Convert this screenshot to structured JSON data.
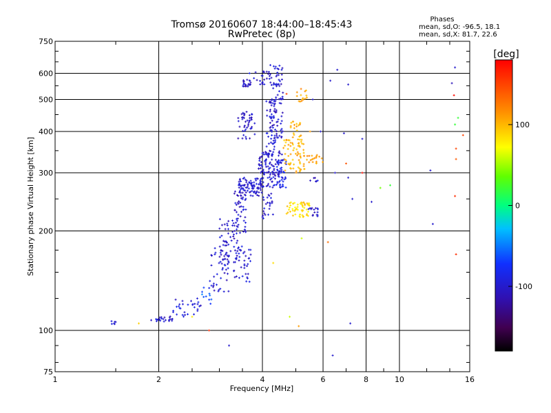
{
  "chart_data": {
    "type": "scatter",
    "title": "Tromsø 20160607 18:44:00–18:45:43",
    "subtitle": "RwPretec (8p)",
    "stats": {
      "heading": "Phases",
      "line_o": "mean, sd,O: -96.5, 18.1",
      "line_x": "mean, sd,X: 81.7, 22.6"
    },
    "xlabel": "Frequency [MHz]",
    "ylabel": "Stationary phase Virtual Height [km]",
    "xscale": "log",
    "yscale": "log",
    "xlim": [
      1,
      16
    ],
    "ylim": [
      75,
      750
    ],
    "xticks": [
      1,
      2,
      4,
      6,
      8,
      10,
      16
    ],
    "xtick_labels": [
      "1",
      "2",
      "4",
      "6",
      "8",
      "10",
      "16"
    ],
    "yticks": [
      75,
      100,
      200,
      300,
      400,
      500,
      600,
      750
    ],
    "ytick_labels": [
      "75",
      "100",
      "200",
      "300",
      "400",
      "500",
      "600",
      "750"
    ],
    "grid": true,
    "colorbar": {
      "label": "[deg]",
      "range": [
        -180,
        180
      ],
      "ticks": [
        100,
        0,
        -100
      ],
      "tick_labels": [
        "100",
        "0",
        "-100"
      ]
    },
    "clusters": [
      {
        "f": [
          1.45,
          1.5
        ],
        "h": [
          104,
          107
        ],
        "phase": -100,
        "n": 6
      },
      {
        "f": [
          1.9,
          2.2
        ],
        "h": [
          106,
          111
        ],
        "phase": -100,
        "n": 22
      },
      {
        "f": [
          2.2,
          2.7
        ],
        "h": [
          110,
          125
        ],
        "phase": -95,
        "n": 30
      },
      {
        "f": [
          2.6,
          2.9
        ],
        "h": [
          120,
          135
        ],
        "phase": -60,
        "n": 10
      },
      {
        "f": [
          2.8,
          3.2
        ],
        "h": [
          130,
          180
        ],
        "phase": -100,
        "n": 45
      },
      {
        "f": [
          3.0,
          3.4
        ],
        "h": [
          160,
          220
        ],
        "phase": -100,
        "n": 55
      },
      {
        "f": [
          3.3,
          3.7
        ],
        "h": [
          140,
          180
        ],
        "phase": -100,
        "n": 40
      },
      {
        "f": [
          3.3,
          3.6
        ],
        "h": [
          195,
          270
        ],
        "phase": -100,
        "n": 45
      },
      {
        "f": [
          3.4,
          4.0
        ],
        "h": [
          255,
          290
        ],
        "phase": -100,
        "n": 90
      },
      {
        "f": [
          3.9,
          4.6
        ],
        "h": [
          270,
          350
        ],
        "phase": -100,
        "n": 110
      },
      {
        "f": [
          3.4,
          3.8
        ],
        "h": [
          380,
          460
        ],
        "phase": -105,
        "n": 45
      },
      {
        "f": [
          3.5,
          3.7
        ],
        "h": [
          545,
          575
        ],
        "phase": -105,
        "n": 20
      },
      {
        "f": [
          3.6,
          4.2
        ],
        "h": [
          555,
          610
        ],
        "phase": -100,
        "n": 25
      },
      {
        "f": [
          4.2,
          4.6
        ],
        "h": [
          380,
          640
        ],
        "phase": -100,
        "n": 90
      },
      {
        "f": [
          4.0,
          4.3
        ],
        "h": [
          215,
          260
        ],
        "phase": -100,
        "n": 25
      },
      {
        "f": [
          4.1,
          4.4
        ],
        "h": [
          300,
          500
        ],
        "phase": -100,
        "n": 60
      },
      {
        "f": [
          4.4,
          4.7
        ],
        "h": [
          270,
          330
        ],
        "phase": -85,
        "n": 30
      },
      {
        "f": [
          4.6,
          5.3
        ],
        "h": [
          300,
          380
        ],
        "phase": 100,
        "n": 70
      },
      {
        "f": [
          4.8,
          5.2
        ],
        "h": [
          380,
          430
        ],
        "phase": 105,
        "n": 20
      },
      {
        "f": [
          5.0,
          5.4
        ],
        "h": [
          470,
          540
        ],
        "phase": 110,
        "n": 15
      },
      {
        "f": [
          4.7,
          5.5
        ],
        "h": [
          220,
          245
        ],
        "phase": 85,
        "n": 55
      },
      {
        "f": [
          5.4,
          5.8
        ],
        "h": [
          220,
          235
        ],
        "phase": -100,
        "n": 15
      },
      {
        "f": [
          5.3,
          6.0
        ],
        "h": [
          320,
          340
        ],
        "phase": 110,
        "n": 20
      },
      {
        "f": [
          5.5,
          6.0
        ],
        "h": [
          280,
          290
        ],
        "phase": -100,
        "n": 6
      }
    ],
    "scattered_points": [
      {
        "f": 6.6,
        "h": 615,
        "phase": -100
      },
      {
        "f": 6.3,
        "h": 570,
        "phase": -100
      },
      {
        "f": 7.1,
        "h": 555,
        "phase": -100
      },
      {
        "f": 6.5,
        "h": 300,
        "phase": -100
      },
      {
        "f": 7.1,
        "h": 290,
        "phase": -100
      },
      {
        "f": 6.9,
        "h": 395,
        "phase": -100
      },
      {
        "f": 7.8,
        "h": 380,
        "phase": -100
      },
      {
        "f": 7.0,
        "h": 320,
        "phase": 140
      },
      {
        "f": 7.3,
        "h": 250,
        "phase": -100
      },
      {
        "f": 7.8,
        "h": 300,
        "phase": 175
      },
      {
        "f": 8.3,
        "h": 245,
        "phase": -100
      },
      {
        "f": 8.8,
        "h": 270,
        "phase": 40
      },
      {
        "f": 9.4,
        "h": 275,
        "phase": 20
      },
      {
        "f": 6.2,
        "h": 185,
        "phase": 130
      },
      {
        "f": 7.2,
        "h": 105,
        "phase": -100
      },
      {
        "f": 6.4,
        "h": 84,
        "phase": -100
      },
      {
        "f": 5.1,
        "h": 103,
        "phase": 110
      },
      {
        "f": 4.8,
        "h": 110,
        "phase": 60
      },
      {
        "f": 4.3,
        "h": 160,
        "phase": 85
      },
      {
        "f": 3.2,
        "h": 90,
        "phase": -100
      },
      {
        "f": 2.8,
        "h": 100,
        "phase": 160
      },
      {
        "f": 1.75,
        "h": 105,
        "phase": 90
      },
      {
        "f": 2.5,
        "h": 110,
        "phase": 80
      },
      {
        "f": 12.3,
        "h": 305,
        "phase": -100
      },
      {
        "f": 12.5,
        "h": 210,
        "phase": -100
      },
      {
        "f": 14.5,
        "h": 420,
        "phase": 20
      },
      {
        "f": 14.6,
        "h": 330,
        "phase": 140
      },
      {
        "f": 14.5,
        "h": 255,
        "phase": 160
      },
      {
        "f": 14.6,
        "h": 170,
        "phase": 160
      },
      {
        "f": 14.2,
        "h": 560,
        "phase": -110
      },
      {
        "f": 14.5,
        "h": 625,
        "phase": -100
      },
      {
        "f": 14.6,
        "h": 355,
        "phase": 150
      },
      {
        "f": 14.4,
        "h": 515,
        "phase": 175
      },
      {
        "f": 15.3,
        "h": 390,
        "phase": 150
      },
      {
        "f": 14.8,
        "h": 440,
        "phase": 20
      },
      {
        "f": 5.5,
        "h": 400,
        "phase": 110
      },
      {
        "f": 5.9,
        "h": 400,
        "phase": -100
      },
      {
        "f": 4.7,
        "h": 520,
        "phase": 150
      },
      {
        "f": 5.6,
        "h": 500,
        "phase": -100
      },
      {
        "f": 5.2,
        "h": 190,
        "phase": 60
      }
    ]
  }
}
